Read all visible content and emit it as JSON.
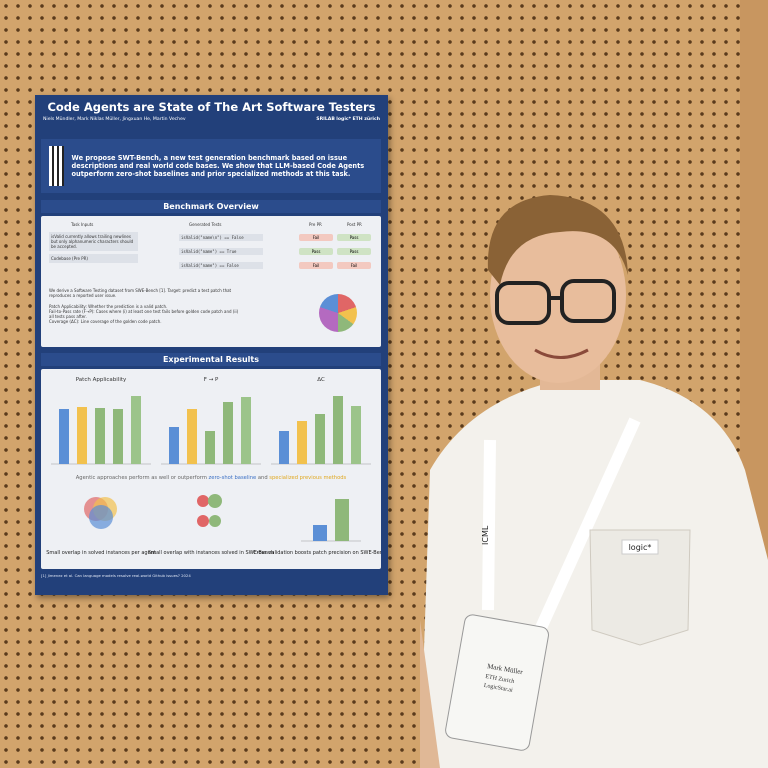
{
  "poster": {
    "title": "Code Agents are State of The Art Software Testers",
    "authors": "Niels Mündler, Mark Niklas Müller, Jingxuan He, Martin Vechev",
    "logos": [
      "SRILAB",
      "logic*",
      "ETH zürich"
    ],
    "abstract": "We propose SWT-Bench, a new test generation benchmark based on issue descriptions and real world code bases. We show that LLM-based Code Agents outperform zero-shot baselines and prior specialized methods at this task.",
    "overview": {
      "heading": "Benchmark Overview",
      "task_inputs": "Task Inputs",
      "issue": "isValid currently allows trailing newlines but only alphanumeric characters should be accepted.",
      "codebase": "Codebase (Pre PR)",
      "generated_tests": "Generated Tests",
      "tests": [
        "isValid(\"name\\n\") == False",
        "isValid(\"name\") == True",
        "isValid(\"name\") == False"
      ],
      "pre_pr": "Pre PR",
      "post_pr": "Post PR",
      "results": [
        [
          "Fail",
          "Pass"
        ],
        [
          "Pass",
          "Pass"
        ],
        [
          "Fail",
          "Fail"
        ]
      ],
      "description": "We derive a Software Testing dataset from SWE-Bench [1]. Target: predict a test patch that reproduces a reported user issue.",
      "bullets": [
        "Patch Applicability: Whether the prediction is a valid patch.",
        "Fail-to-Pass rate (F→P): Cases where (i) at least one test fails before golden code patch and (ii) all tests pass after.",
        "Coverage (ΔC): Line coverage of the golden code patch."
      ]
    },
    "results": {
      "heading": "Experimental Results",
      "charts": [
        {
          "title": "Patch Applicability",
          "values": [
            55,
            57,
            56,
            55,
            68
          ],
          "colors": [
            "#5b8fd6",
            "#f2c14e",
            "#8fb87a",
            "#8fb87a",
            "#9cc48a"
          ]
        },
        {
          "title": "F → P",
          "values": [
            37,
            55,
            33,
            62,
            67
          ],
          "colors": [
            "#5b8fd6",
            "#f2c14e",
            "#8fb87a",
            "#8fb87a",
            "#9cc48a"
          ]
        },
        {
          "title": "ΔC",
          "values": [
            33,
            43,
            50,
            68,
            58
          ],
          "colors": [
            "#5b8fd6",
            "#f2c14e",
            "#8fb87a",
            "#8fb87a",
            "#9cc48a"
          ]
        }
      ],
      "claim": [
        "Agentic approaches perform as well or outperform",
        "zero-shot baseline",
        "and",
        "specialized previous methods"
      ],
      "cross_validation": {
        "values": [
          16,
          42
        ],
        "colors": [
          "#5b8fd6",
          "#8fb87a"
        ]
      },
      "captions": [
        "Small overlap in solved instances per agent",
        "Small overlap with instances solved in SWE-Bench",
        "Cross validation boosts patch precision on SWE-Bench"
      ]
    },
    "references": "[1] Jimenez et al. Can language models resolve real-world Github issues? 2024"
  },
  "person": {
    "badge": [
      "Mark Müller",
      "ETH Zurich",
      "LogicStar.ai"
    ],
    "shirt_logo": "logic*",
    "lanyard": "ICML"
  }
}
